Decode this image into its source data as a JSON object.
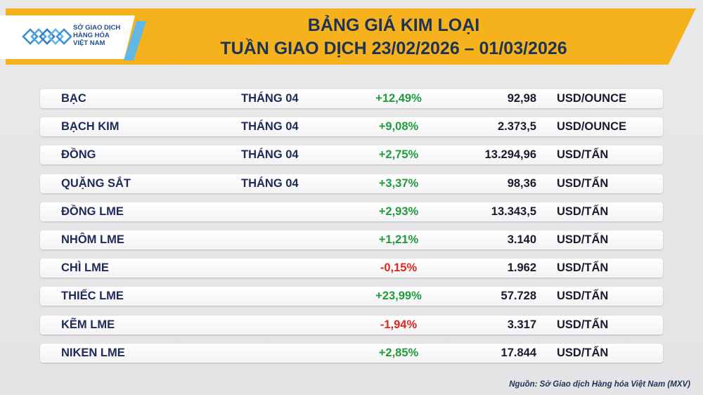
{
  "header": {
    "logo": {
      "name": "mxv-logo-icon",
      "lines": [
        "SỞ GIAO DỊCH",
        "HÀNG HÓA",
        "VIỆT NAM"
      ]
    },
    "title_line1": "BẢNG GIÁ KIM LOẠI",
    "title_line2": "TUẦN GIAO DỊCH 23/02/2026 – 01/03/2026"
  },
  "colors": {
    "header_band": "#f5b21c",
    "positive": "#1f9c3c",
    "negative": "#e0251b",
    "text_dark": "#1d2a5a"
  },
  "rows": [
    {
      "name": "BẠC",
      "month": "THÁNG 04",
      "change": "+12,49%",
      "direction": "up",
      "price": "92,98",
      "unit": "USD/OUNCE"
    },
    {
      "name": "BẠCH KIM",
      "month": "THÁNG 04",
      "change": "+9,08%",
      "direction": "up",
      "price": "2.373,5",
      "unit": "USD/OUNCE"
    },
    {
      "name": "ĐỒNG",
      "month": "THÁNG 04",
      "change": "+2,75%",
      "direction": "up",
      "price": "13.294,96",
      "unit": "USD/TẤN"
    },
    {
      "name": "QUẶNG SẮT",
      "month": "THÁNG 04",
      "change": "+3,37%",
      "direction": "up",
      "price": "98,36",
      "unit": "USD/TẤN"
    },
    {
      "name": "ĐỒNG LME",
      "month": "",
      "change": "+2,93%",
      "direction": "up",
      "price": "13.343,5",
      "unit": "USD/TẤN"
    },
    {
      "name": "NHÔM LME",
      "month": "",
      "change": "+1,21%",
      "direction": "up",
      "price": "3.140",
      "unit": "USD/TẤN"
    },
    {
      "name": "CHÌ LME",
      "month": "",
      "change": "-0,15%",
      "direction": "down",
      "price": "1.962",
      "unit": "USD/TẤN"
    },
    {
      "name": "THIẾC LME",
      "month": "",
      "change": "+23,99%",
      "direction": "up",
      "price": "57.728",
      "unit": "USD/TẤN"
    },
    {
      "name": "KẼM LME",
      "month": "",
      "change": "-1,94%",
      "direction": "down",
      "price": "3.317",
      "unit": "USD/TẤN"
    },
    {
      "name": "NIKEN LME",
      "month": "",
      "change": "+2,85%",
      "direction": "up",
      "price": "17.844",
      "unit": "USD/TẤN"
    }
  ],
  "source": "Nguồn: Sở Giao dịch Hàng hóa Việt Nam (MXV)"
}
